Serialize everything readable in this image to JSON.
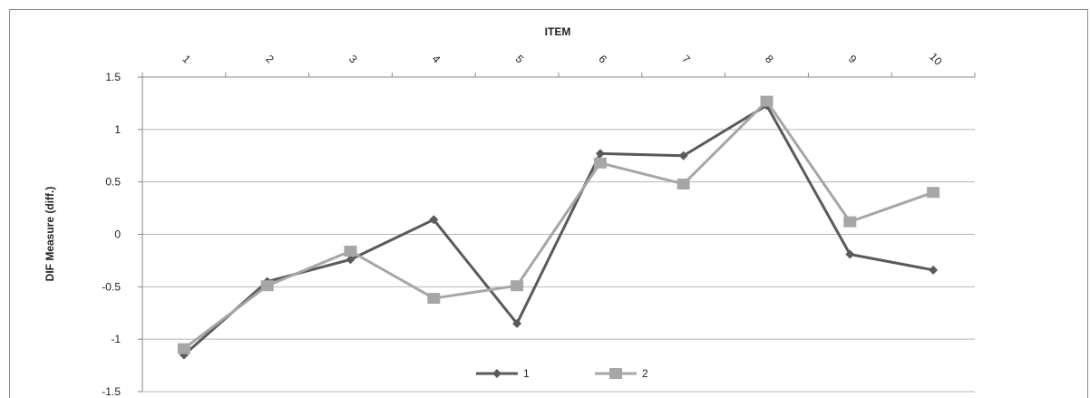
{
  "chart_data": {
    "type": "line",
    "title": "",
    "xlabel": "ITEM",
    "ylabel": "DIF Measure (diff.)",
    "categories": [
      "1",
      "2",
      "3",
      "4",
      "5",
      "6",
      "7",
      "8",
      "9",
      "10"
    ],
    "ylim": [
      -1.5,
      1.5
    ],
    "yticks": [
      "1.5",
      "1",
      "0.5",
      "0",
      "-0.5",
      "-1",
      "-1.5"
    ],
    "ytick_values": [
      1.5,
      1,
      0.5,
      0,
      -0.5,
      -1,
      -1.5
    ],
    "x_axis_position": "top",
    "grid": true,
    "legend_position": "bottom",
    "series": [
      {
        "name": "1",
        "marker": "diamond",
        "color": "#5a5a5a",
        "values": [
          -1.15,
          -0.45,
          -0.24,
          0.14,
          -0.85,
          0.77,
          0.75,
          1.23,
          -0.19,
          -0.34
        ]
      },
      {
        "name": "2",
        "marker": "square",
        "color": "#a6a6a6",
        "values": [
          -1.09,
          -0.49,
          -0.16,
          -0.61,
          -0.49,
          0.68,
          0.48,
          1.27,
          0.12,
          0.4
        ]
      }
    ]
  }
}
